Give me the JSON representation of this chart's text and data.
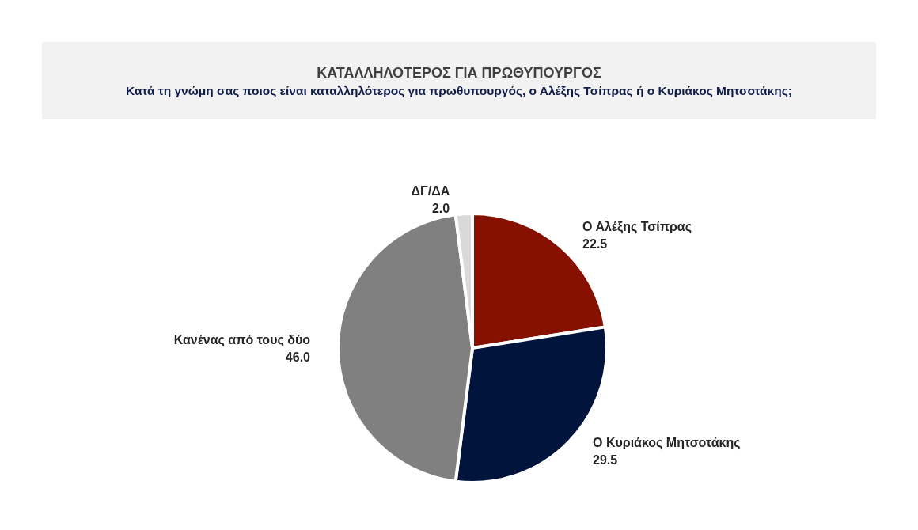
{
  "chart_data": {
    "type": "pie",
    "title": "ΚΑΤΑΛΛΗΛΟΤΕΡΟΣ ΓΙΑ ΠΡΩΘΥΠΟΥΡΓΟΣ",
    "subtitle": "Κατά τη γνώμη σας ποιος είναι καταλληλότερος για πρωθυπουργός, ο Αλέξης Τσίπρας ή ο Κυριάκος Μητσοτάκης;",
    "categories": [
      "Ο Αλέξης Τσίπρας",
      "Ο Κυριάκος Μητσοτάκης",
      "Κανένας από τους δύο",
      "ΔΓ/ΔΑ"
    ],
    "values": [
      22.5,
      29.5,
      46.0,
      2.0
    ],
    "value_labels": [
      "22.5",
      "29.5",
      "46.0",
      "2.0"
    ],
    "colors": [
      "#861100",
      "#00143c",
      "#808080",
      "#d9d9d9"
    ]
  }
}
